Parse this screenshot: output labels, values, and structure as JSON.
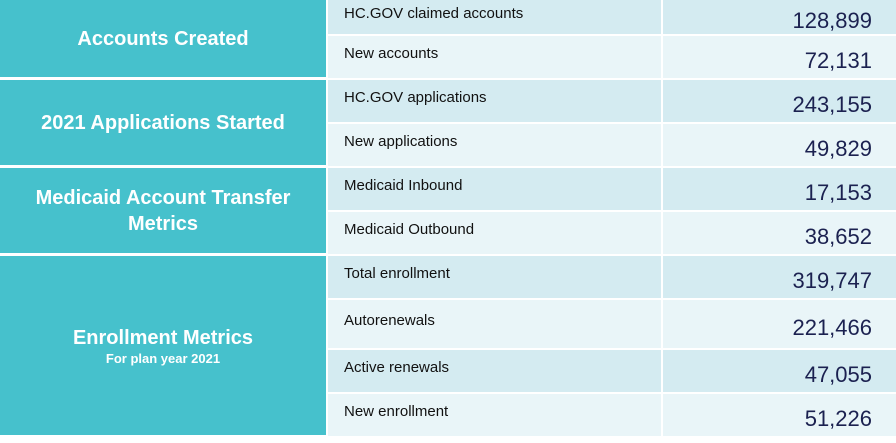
{
  "table": {
    "groups": [
      {
        "title": "Accounts Created",
        "rows": [
          [
            "HC.GOV claimed accounts",
            "128,899"
          ],
          [
            "New accounts",
            "72,131"
          ]
        ]
      },
      {
        "title": "2021 Applications Started",
        "rows": [
          [
            "HC.GOV applications",
            "243,155"
          ],
          [
            "New applications",
            "49,829"
          ]
        ]
      },
      {
        "title": "Medicaid Account Transfer Metrics",
        "rows": [
          [
            "Medicaid Inbound",
            "17,153"
          ],
          [
            "Medicaid Outbound",
            "38,652"
          ]
        ]
      },
      {
        "title": "Enrollment Metrics",
        "subtitle": "For plan year 2021",
        "rows": [
          [
            "Total enrollment",
            "319,747"
          ],
          [
            "Autorenewals",
            "221,466"
          ],
          [
            "Active renewals",
            "47,055"
          ],
          [
            "New enrollment",
            "51,226"
          ]
        ]
      }
    ]
  }
}
